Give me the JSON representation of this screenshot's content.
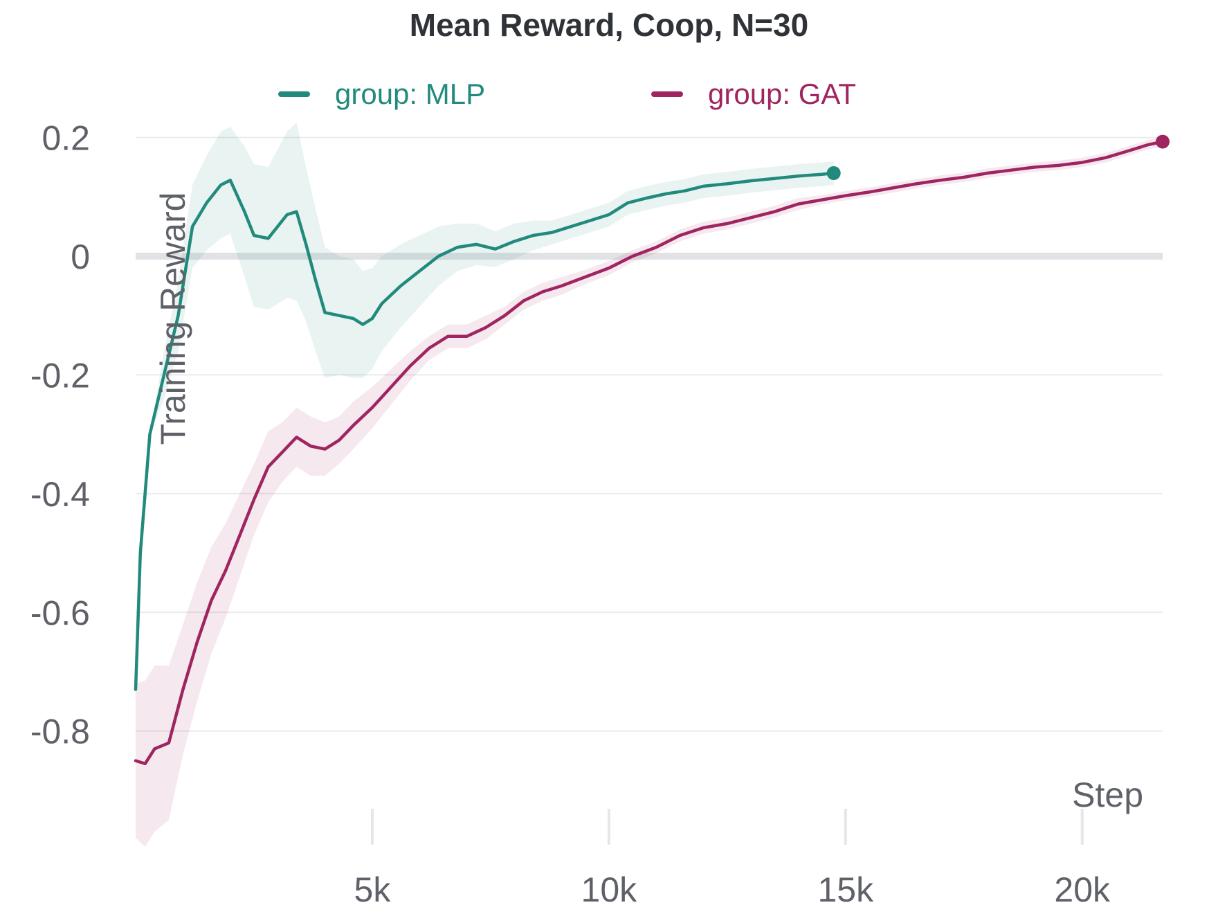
{
  "chart_data": {
    "type": "line",
    "title": "Mean Reward, Coop, N=30",
    "xlabel": "Step",
    "ylabel": "Training Reward",
    "xlim": [
      0,
      21700
    ],
    "ylim": [
      -0.98,
      0.245
    ],
    "y_ticks": [
      {
        "value": 0.2,
        "label": "0.2"
      },
      {
        "value": 0,
        "label": "0"
      },
      {
        "value": -0.2,
        "label": "-0.2"
      },
      {
        "value": -0.4,
        "label": "-0.4"
      },
      {
        "value": -0.6,
        "label": "-0.6"
      },
      {
        "value": -0.8,
        "label": "-0.8"
      }
    ],
    "x_ticks": [
      {
        "value": 5000,
        "label": "5k"
      },
      {
        "value": 10000,
        "label": "10k"
      },
      {
        "value": 15000,
        "label": "15k"
      },
      {
        "value": 20000,
        "label": "20k"
      }
    ],
    "grid": true,
    "legend_position": "top",
    "series": [
      {
        "name": "group: MLP",
        "color": "#228a7c",
        "band_color": "#228a7c",
        "x": [
          0,
          100,
          300,
          600,
          900,
          1200,
          1500,
          1800,
          2000,
          2300,
          2500,
          2800,
          3000,
          3200,
          3400,
          3600,
          3800,
          4000,
          4300,
          4600,
          4800,
          5000,
          5200,
          5600,
          6000,
          6400,
          6800,
          7200,
          7600,
          8000,
          8400,
          8800,
          9200,
          9600,
          10000,
          10400,
          10800,
          11200,
          11600,
          12000,
          12500,
          13000,
          13500,
          14000,
          14500,
          14750
        ],
        "y": [
          -0.73,
          -0.5,
          -0.3,
          -0.2,
          -0.1,
          0.05,
          0.09,
          0.12,
          0.128,
          0.075,
          0.035,
          0.03,
          0.05,
          0.07,
          0.075,
          0.02,
          -0.04,
          -0.095,
          -0.1,
          -0.105,
          -0.115,
          -0.105,
          -0.08,
          -0.05,
          -0.025,
          0.0,
          0.015,
          0.02,
          0.012,
          0.025,
          0.035,
          0.04,
          0.05,
          0.06,
          0.07,
          0.09,
          0.098,
          0.105,
          0.11,
          0.118,
          0.122,
          0.127,
          0.131,
          0.135,
          0.138,
          0.14
        ],
        "band": [
          0.0,
          0.0,
          0.0,
          0.04,
          0.06,
          0.07,
          0.08,
          0.09,
          0.09,
          0.11,
          0.12,
          0.12,
          0.13,
          0.14,
          0.15,
          0.13,
          0.12,
          0.11,
          0.1,
          0.1,
          0.09,
          0.085,
          0.08,
          0.07,
          0.06,
          0.05,
          0.04,
          0.035,
          0.03,
          0.03,
          0.025,
          0.02,
          0.02,
          0.02,
          0.02,
          0.02,
          0.02,
          0.02,
          0.02,
          0.02,
          0.02,
          0.02,
          0.02,
          0.02,
          0.02,
          0.02
        ]
      },
      {
        "name": "group: GAT",
        "color": "#9f2561",
        "band_color": "#9f2561",
        "x": [
          0,
          200,
          400,
          700,
          1000,
          1300,
          1600,
          1900,
          2200,
          2500,
          2800,
          3100,
          3400,
          3700,
          4000,
          4300,
          4600,
          5000,
          5400,
          5800,
          6200,
          6600,
          7000,
          7400,
          7800,
          8200,
          8600,
          9000,
          9500,
          10000,
          10500,
          11000,
          11500,
          12000,
          12500,
          13000,
          13500,
          14000,
          14500,
          15000,
          15500,
          16000,
          16500,
          17000,
          17500,
          18000,
          18500,
          19000,
          19500,
          20000,
          20500,
          21000,
          21400,
          21700
        ],
        "y": [
          -0.85,
          -0.855,
          -0.83,
          -0.82,
          -0.73,
          -0.65,
          -0.58,
          -0.53,
          -0.47,
          -0.41,
          -0.355,
          -0.33,
          -0.305,
          -0.32,
          -0.325,
          -0.31,
          -0.285,
          -0.255,
          -0.22,
          -0.185,
          -0.155,
          -0.135,
          -0.135,
          -0.12,
          -0.1,
          -0.075,
          -0.06,
          -0.05,
          -0.035,
          -0.02,
          0.0,
          0.015,
          0.035,
          0.048,
          0.055,
          0.065,
          0.075,
          0.088,
          0.095,
          0.102,
          0.108,
          0.115,
          0.122,
          0.128,
          0.133,
          0.14,
          0.145,
          0.15,
          0.153,
          0.158,
          0.166,
          0.178,
          0.188,
          0.193
        ],
        "band": [
          0.13,
          0.14,
          0.14,
          0.13,
          0.11,
          0.1,
          0.09,
          0.08,
          0.07,
          0.06,
          0.06,
          0.05,
          0.05,
          0.05,
          0.045,
          0.04,
          0.04,
          0.035,
          0.03,
          0.025,
          0.02,
          0.02,
          0.02,
          0.02,
          0.015,
          0.015,
          0.015,
          0.015,
          0.012,
          0.012,
          0.01,
          0.01,
          0.01,
          0.01,
          0.01,
          0.01,
          0.01,
          0.01,
          0.008,
          0.008,
          0.008,
          0.008,
          0.008,
          0.008,
          0.008,
          0.008,
          0.008,
          0.008,
          0.008,
          0.008,
          0.008,
          0.008,
          0.008,
          0.008
        ]
      }
    ]
  }
}
